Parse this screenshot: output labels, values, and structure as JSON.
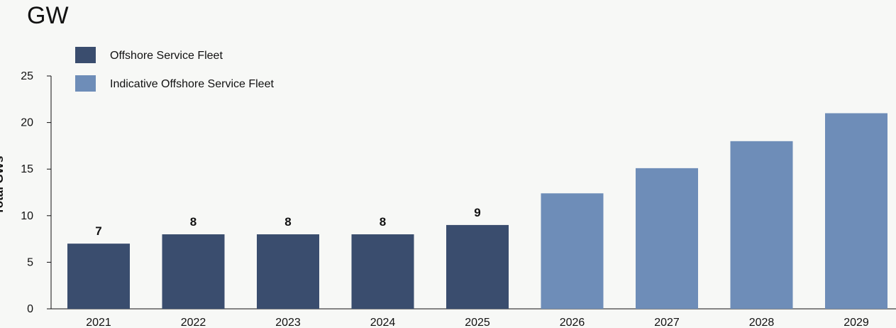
{
  "unit_title": "GW",
  "colors": {
    "actual": "#3a4d6e",
    "indicative": "#6e8db8",
    "axis": "#111111",
    "background": "#f7f8f6"
  },
  "chart_data": {
    "type": "bar",
    "title": "",
    "xlabel": "",
    "ylabel": "Total GWs",
    "ylim": [
      0,
      25
    ],
    "yticks": [
      0,
      5,
      10,
      15,
      20,
      25
    ],
    "grid": false,
    "legend_position": "top-left",
    "categories": [
      "2021",
      "2022",
      "2023",
      "2024",
      "2025",
      "2026",
      "2027",
      "2028",
      "2029"
    ],
    "series": [
      {
        "name": "Offshore Service Fleet",
        "color": "#3a4d6e",
        "values": [
          7,
          8,
          8,
          8,
          9,
          null,
          null,
          null,
          null
        ],
        "labels": [
          "7",
          "8",
          "8",
          "8",
          "9",
          "",
          "",
          "",
          ""
        ]
      },
      {
        "name": "Indicative Offshore Service Fleet",
        "color": "#6e8db8",
        "values": [
          null,
          null,
          null,
          null,
          null,
          12.4,
          15.1,
          18,
          21
        ],
        "labels": [
          "",
          "",
          "",
          "",
          "",
          "",
          "",
          "",
          ""
        ]
      }
    ]
  }
}
